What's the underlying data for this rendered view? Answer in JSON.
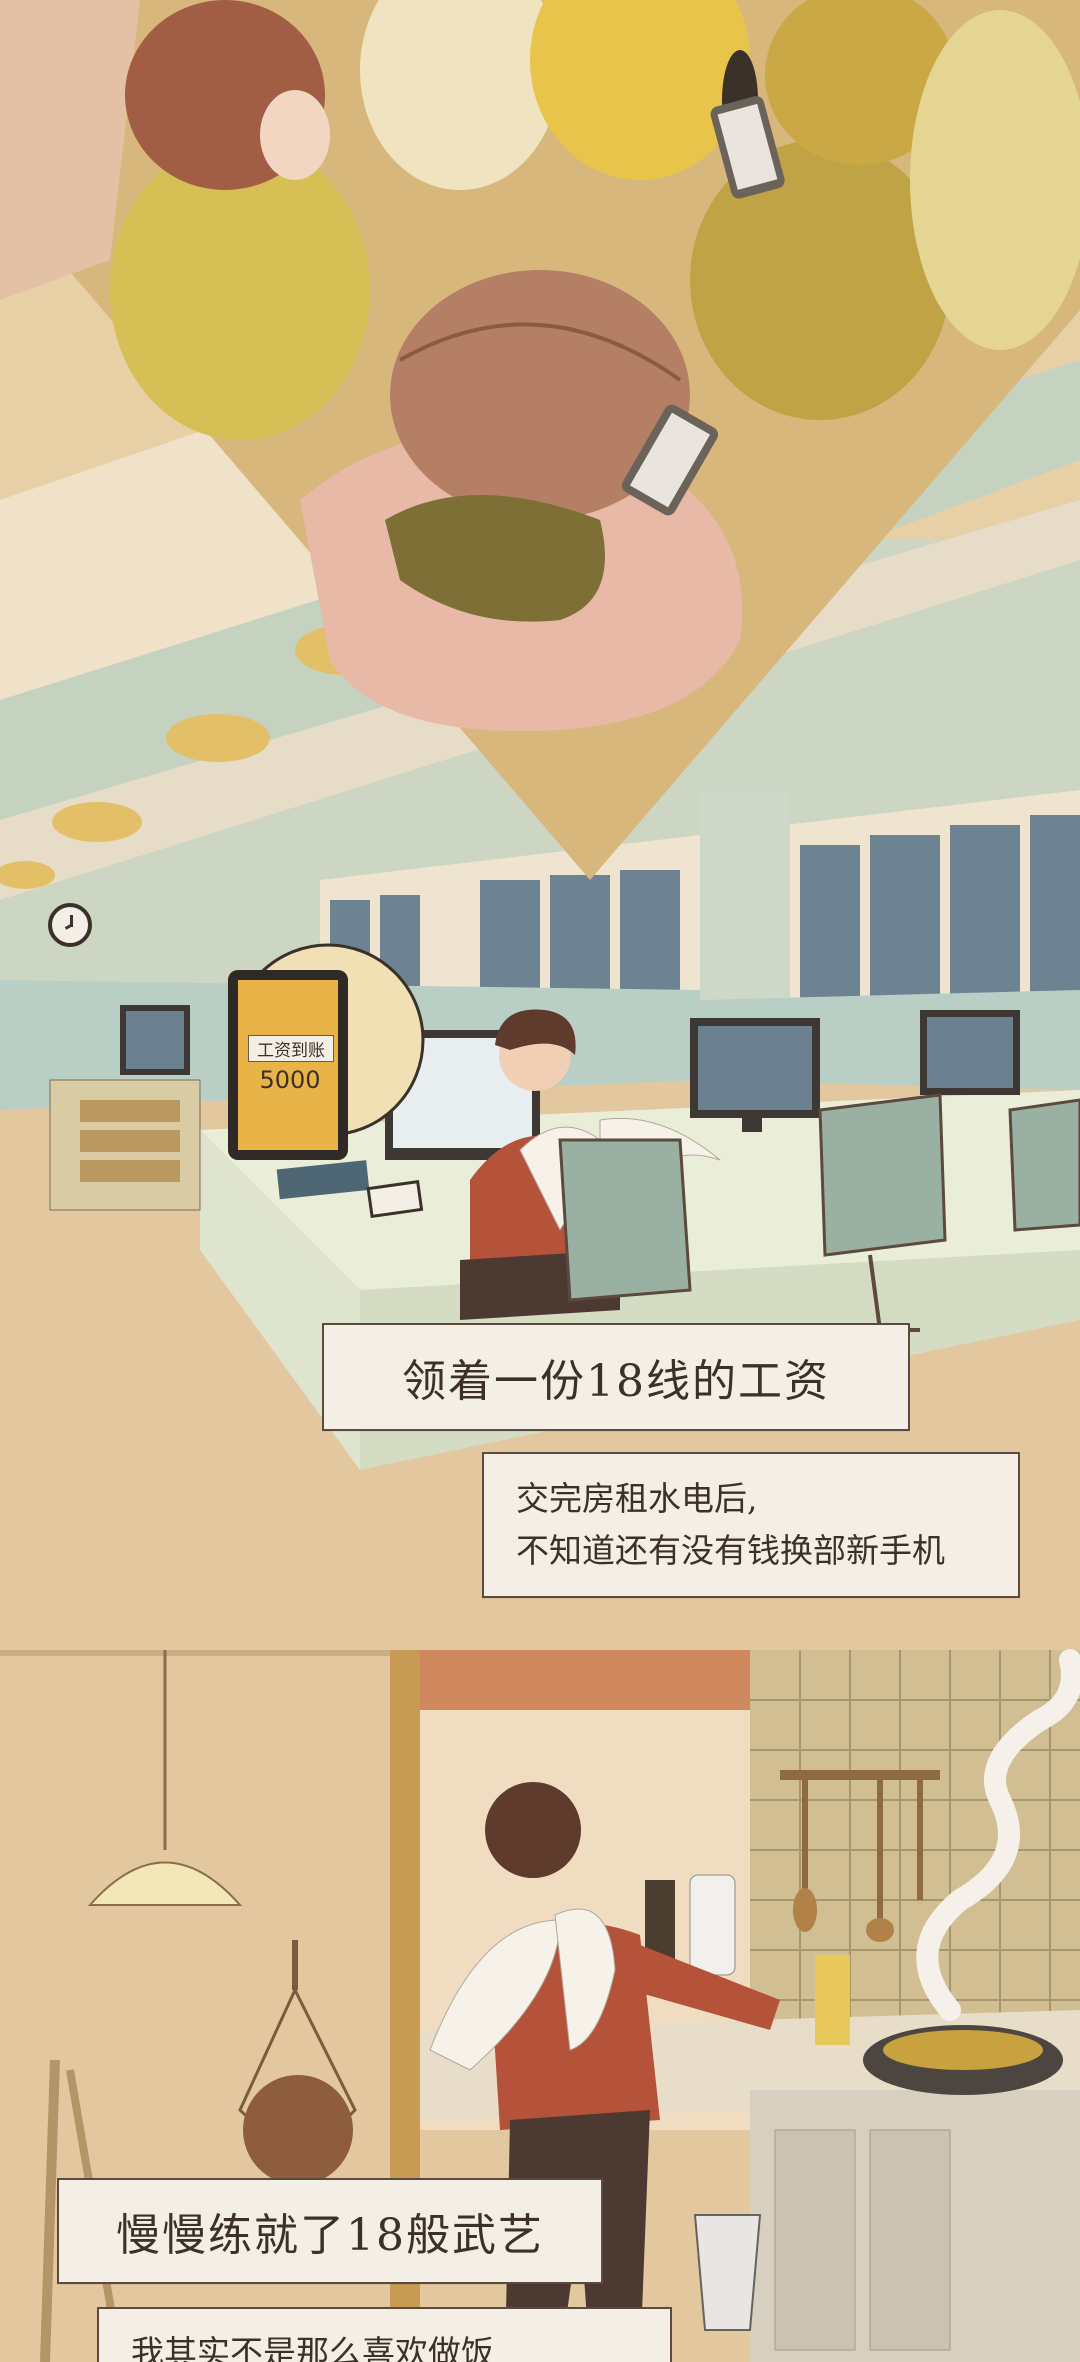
{
  "phone_bubble": {
    "notice_label": "工资到账",
    "amount": "5000"
  },
  "captions": {
    "salary_title": "领着一份18线的工资",
    "rent_line1": "交完房租水电后,",
    "rent_line2": "不知道还有没有钱换部新手机",
    "skills_title": "慢慢练就了18般武艺",
    "cooking_line": "我其实不是那么喜欢做饭"
  }
}
